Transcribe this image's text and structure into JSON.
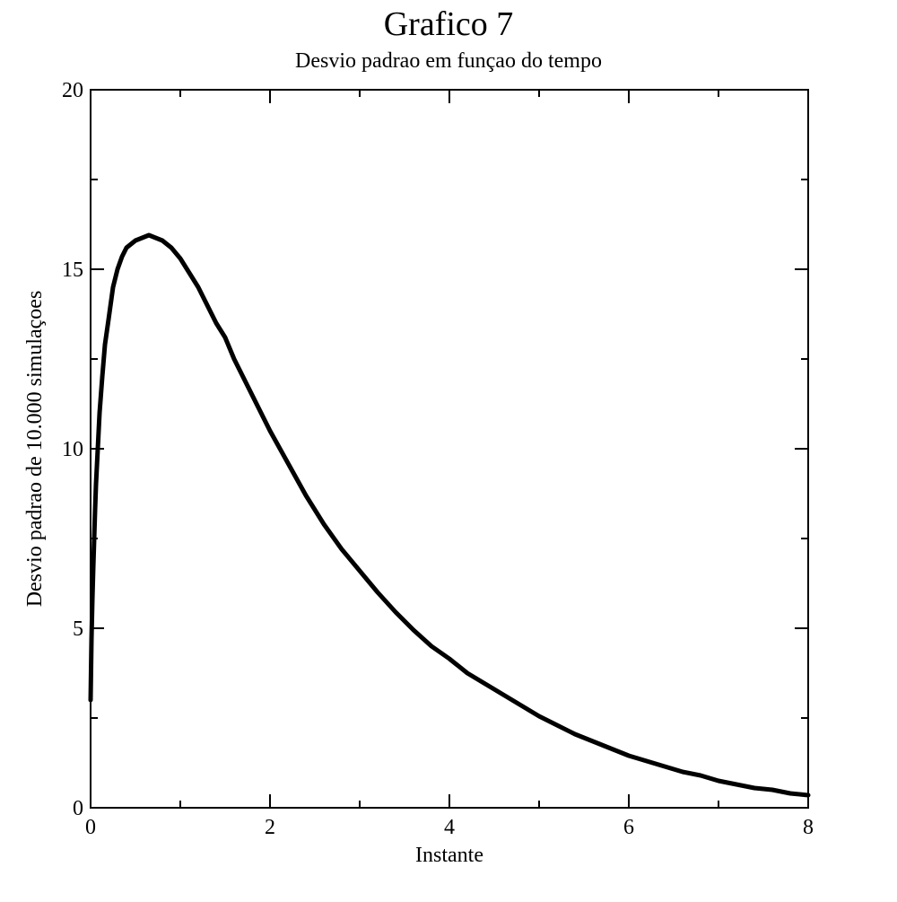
{
  "chart_data": {
    "type": "line",
    "title": "Grafico 7",
    "subtitle": "Desvio padrao em funçao do tempo",
    "xlabel": "Instante",
    "ylabel": "Desvio padrao de 10.000 simulaçoes",
    "xlim": [
      0,
      8
    ],
    "ylim": [
      0,
      20
    ],
    "x_ticks": [
      0,
      2,
      4,
      6,
      8
    ],
    "x_minor_ticks": [
      1,
      3,
      5,
      7
    ],
    "y_ticks": [
      0,
      5,
      10,
      15,
      20
    ],
    "y_minor_ticks": [
      2.5,
      7.5,
      12.5,
      17.5
    ],
    "grid": false,
    "line_color": "#000000",
    "series": [
      {
        "x": [
          0.0,
          0.01,
          0.02,
          0.03,
          0.04,
          0.05,
          0.06,
          0.08,
          0.1,
          0.13,
          0.16,
          0.2,
          0.25,
          0.3,
          0.35,
          0.4,
          0.45,
          0.5,
          0.55,
          0.6,
          0.65,
          0.7,
          0.75,
          0.8,
          0.85,
          0.9,
          1.0,
          1.1,
          1.2,
          1.3,
          1.4,
          1.5,
          1.6,
          1.7,
          1.8,
          1.9,
          2.0,
          2.2,
          2.4,
          2.6,
          2.8,
          3.0,
          3.2,
          3.4,
          3.6,
          3.8,
          4.0,
          4.2,
          4.4,
          4.6,
          4.8,
          5.0,
          5.2,
          5.4,
          5.6,
          5.8,
          6.0,
          6.2,
          6.4,
          6.6,
          6.8,
          7.0,
          7.2,
          7.4,
          7.6,
          7.8,
          8.0
        ],
        "y": [
          3.0,
          4.7,
          5.8,
          6.7,
          7.5,
          8.3,
          9.0,
          10.0,
          11.0,
          12.0,
          12.9,
          13.6,
          14.5,
          15.0,
          15.35,
          15.6,
          15.7,
          15.8,
          15.85,
          15.9,
          15.95,
          15.9,
          15.85,
          15.8,
          15.7,
          15.6,
          15.3,
          14.9,
          14.5,
          14.0,
          13.5,
          13.1,
          12.5,
          12.0,
          11.5,
          11.0,
          10.5,
          9.6,
          8.7,
          7.9,
          7.2,
          6.6,
          6.0,
          5.45,
          4.95,
          4.5,
          4.15,
          3.75,
          3.45,
          3.15,
          2.85,
          2.55,
          2.3,
          2.05,
          1.85,
          1.65,
          1.45,
          1.3,
          1.15,
          1.0,
          0.9,
          0.75,
          0.65,
          0.55,
          0.5,
          0.4,
          0.35
        ]
      }
    ]
  }
}
